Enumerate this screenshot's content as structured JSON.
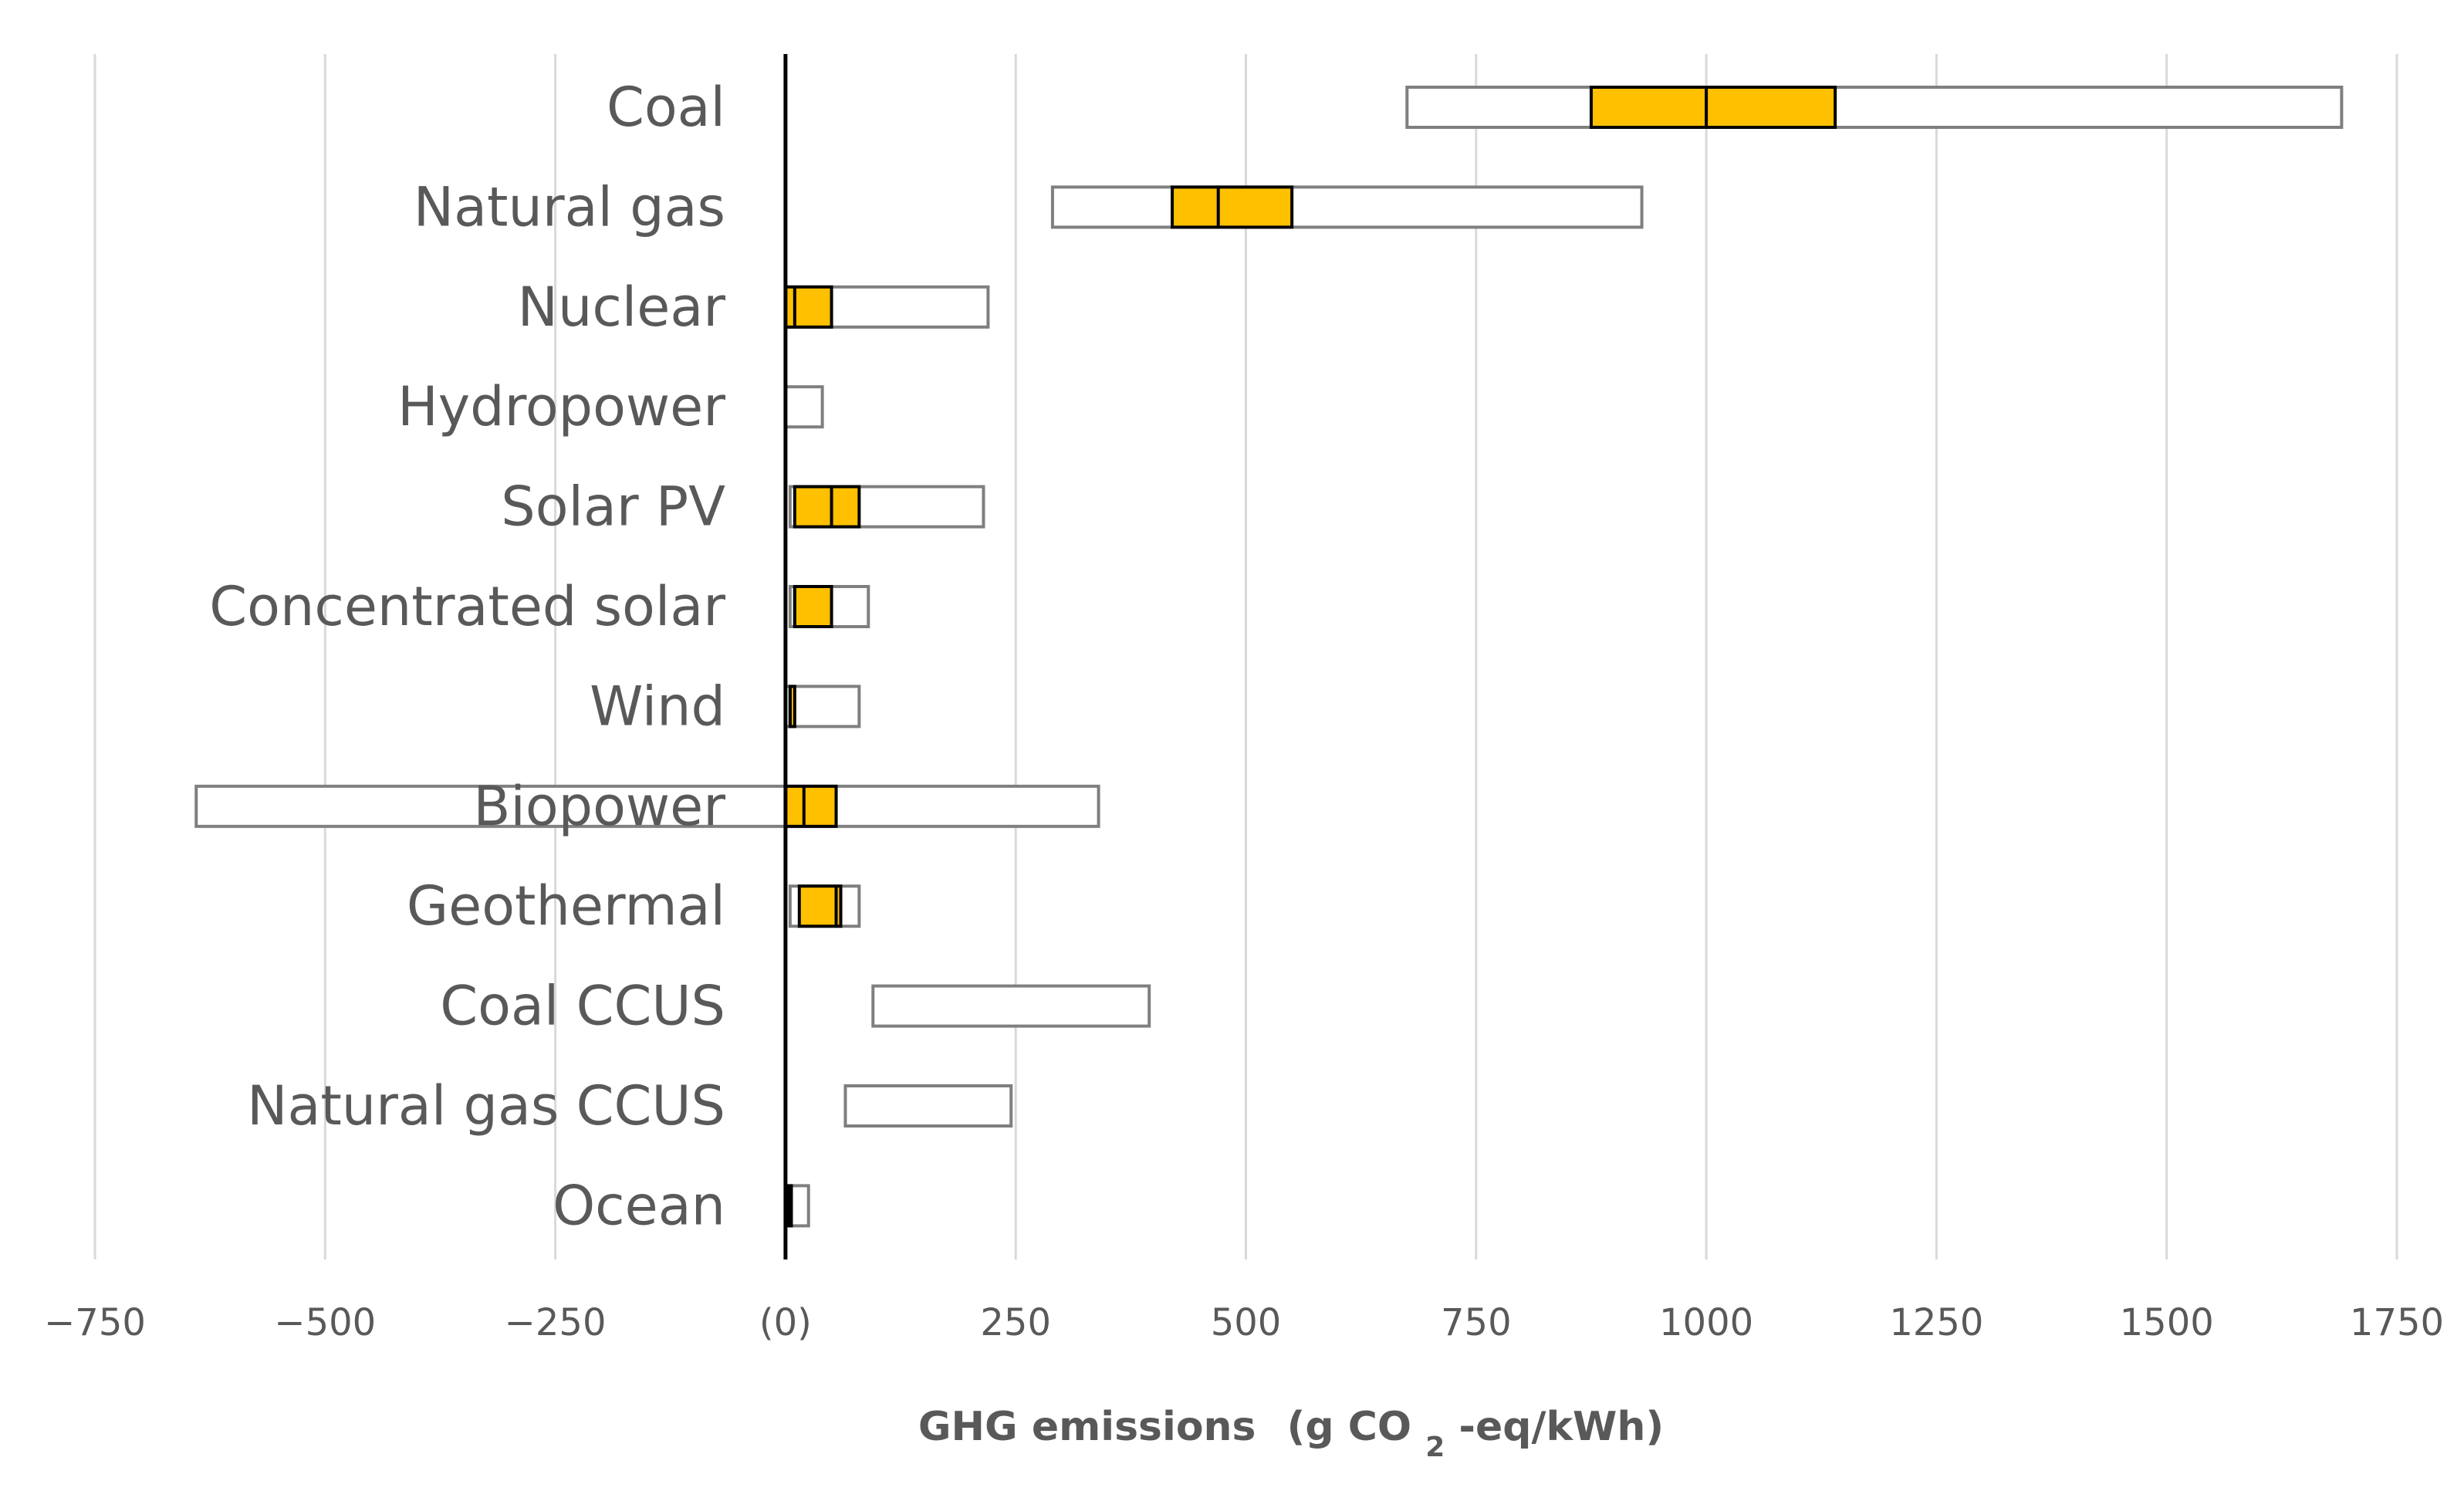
{
  "chart_data": {
    "type": "box-range",
    "orientation": "horizontal",
    "title": "",
    "xlabel": "GHG emissions",
    "xlabel_units": {
      "prefix": "(g CO",
      "subscript": "2",
      "suffix": "-eq/kWh)"
    },
    "xlim": [
      -750,
      1750
    ],
    "x_ticks": [
      -750,
      -500,
      -250,
      0,
      250,
      500,
      750,
      1000,
      1250,
      1500,
      1750
    ],
    "x_tick_labels": [
      "−750",
      "−500",
      "−250",
      "(0)",
      "250",
      "500",
      "750",
      "1000",
      "1250",
      "1500",
      "1750"
    ],
    "grid": true,
    "colors": {
      "iqr_fill": "#ffc000",
      "iqr_stroke": "#000000",
      "range_stroke": "#7f7f7f",
      "grid": "#d9d9d9",
      "text": "#595959"
    },
    "categories": [
      {
        "name": "Coal",
        "min": 675,
        "q1": 875,
        "median": 1000,
        "q3": 1140,
        "max": 1690
      },
      {
        "name": "Natural gas",
        "min": 290,
        "q1": 420,
        "median": 470,
        "q3": 550,
        "max": 930
      },
      {
        "name": "Nuclear",
        "min": 0,
        "q1": 0,
        "median": 10,
        "q3": 50,
        "max": 220
      },
      {
        "name": "Hydropower",
        "min": 0,
        "q1": null,
        "median": null,
        "q3": null,
        "max": 40
      },
      {
        "name": "Solar PV",
        "min": 5,
        "q1": 10,
        "median": 50,
        "q3": 80,
        "max": 215
      },
      {
        "name": "Concentrated solar",
        "min": 5,
        "q1": 10,
        "median": 10,
        "q3": 50,
        "max": 90
      },
      {
        "name": "Wind",
        "min": 0,
        "q1": 5,
        "median": 5,
        "q3": 10,
        "max": 80
      },
      {
        "name": "Biopower",
        "min": -640,
        "q1": 0,
        "median": 20,
        "q3": 55,
        "max": 340
      },
      {
        "name": "Geothermal",
        "min": 5,
        "q1": 15,
        "median": 55,
        "q3": 60,
        "max": 80
      },
      {
        "name": "Coal CCUS",
        "min": 95,
        "q1": null,
        "median": null,
        "q3": null,
        "max": 395
      },
      {
        "name": "Natural gas CCUS",
        "min": 65,
        "q1": null,
        "median": null,
        "q3": null,
        "max": 245
      },
      {
        "name": "Ocean",
        "min": 2,
        "q1": 3,
        "median": 3,
        "q3": 5,
        "max": 25
      }
    ]
  }
}
